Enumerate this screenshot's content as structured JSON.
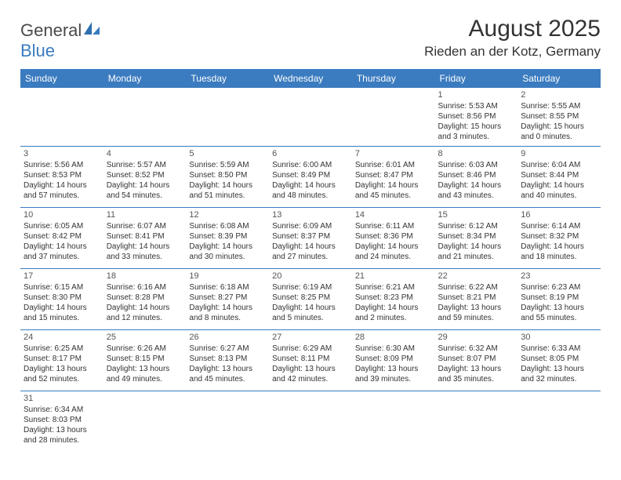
{
  "logo": {
    "text1": "General",
    "text2": "Blue"
  },
  "title": "August 2025",
  "location": "Rieden an der Kotz, Germany",
  "colors": {
    "header_bg": "#3b7bbf",
    "header_text": "#ffffff",
    "border": "#3b7bbf",
    "text": "#333333",
    "logo_gray": "#4a4a4a",
    "logo_blue": "#3b7bbf"
  },
  "weekdays": [
    "Sunday",
    "Monday",
    "Tuesday",
    "Wednesday",
    "Thursday",
    "Friday",
    "Saturday"
  ],
  "weeks": [
    [
      null,
      null,
      null,
      null,
      null,
      {
        "day": "1",
        "sunrise": "Sunrise: 5:53 AM",
        "sunset": "Sunset: 8:56 PM",
        "daylight1": "Daylight: 15 hours",
        "daylight2": "and 3 minutes."
      },
      {
        "day": "2",
        "sunrise": "Sunrise: 5:55 AM",
        "sunset": "Sunset: 8:55 PM",
        "daylight1": "Daylight: 15 hours",
        "daylight2": "and 0 minutes."
      }
    ],
    [
      {
        "day": "3",
        "sunrise": "Sunrise: 5:56 AM",
        "sunset": "Sunset: 8:53 PM",
        "daylight1": "Daylight: 14 hours",
        "daylight2": "and 57 minutes."
      },
      {
        "day": "4",
        "sunrise": "Sunrise: 5:57 AM",
        "sunset": "Sunset: 8:52 PM",
        "daylight1": "Daylight: 14 hours",
        "daylight2": "and 54 minutes."
      },
      {
        "day": "5",
        "sunrise": "Sunrise: 5:59 AM",
        "sunset": "Sunset: 8:50 PM",
        "daylight1": "Daylight: 14 hours",
        "daylight2": "and 51 minutes."
      },
      {
        "day": "6",
        "sunrise": "Sunrise: 6:00 AM",
        "sunset": "Sunset: 8:49 PM",
        "daylight1": "Daylight: 14 hours",
        "daylight2": "and 48 minutes."
      },
      {
        "day": "7",
        "sunrise": "Sunrise: 6:01 AM",
        "sunset": "Sunset: 8:47 PM",
        "daylight1": "Daylight: 14 hours",
        "daylight2": "and 45 minutes."
      },
      {
        "day": "8",
        "sunrise": "Sunrise: 6:03 AM",
        "sunset": "Sunset: 8:46 PM",
        "daylight1": "Daylight: 14 hours",
        "daylight2": "and 43 minutes."
      },
      {
        "day": "9",
        "sunrise": "Sunrise: 6:04 AM",
        "sunset": "Sunset: 8:44 PM",
        "daylight1": "Daylight: 14 hours",
        "daylight2": "and 40 minutes."
      }
    ],
    [
      {
        "day": "10",
        "sunrise": "Sunrise: 6:05 AM",
        "sunset": "Sunset: 8:42 PM",
        "daylight1": "Daylight: 14 hours",
        "daylight2": "and 37 minutes."
      },
      {
        "day": "11",
        "sunrise": "Sunrise: 6:07 AM",
        "sunset": "Sunset: 8:41 PM",
        "daylight1": "Daylight: 14 hours",
        "daylight2": "and 33 minutes."
      },
      {
        "day": "12",
        "sunrise": "Sunrise: 6:08 AM",
        "sunset": "Sunset: 8:39 PM",
        "daylight1": "Daylight: 14 hours",
        "daylight2": "and 30 minutes."
      },
      {
        "day": "13",
        "sunrise": "Sunrise: 6:09 AM",
        "sunset": "Sunset: 8:37 PM",
        "daylight1": "Daylight: 14 hours",
        "daylight2": "and 27 minutes."
      },
      {
        "day": "14",
        "sunrise": "Sunrise: 6:11 AM",
        "sunset": "Sunset: 8:36 PM",
        "daylight1": "Daylight: 14 hours",
        "daylight2": "and 24 minutes."
      },
      {
        "day": "15",
        "sunrise": "Sunrise: 6:12 AM",
        "sunset": "Sunset: 8:34 PM",
        "daylight1": "Daylight: 14 hours",
        "daylight2": "and 21 minutes."
      },
      {
        "day": "16",
        "sunrise": "Sunrise: 6:14 AM",
        "sunset": "Sunset: 8:32 PM",
        "daylight1": "Daylight: 14 hours",
        "daylight2": "and 18 minutes."
      }
    ],
    [
      {
        "day": "17",
        "sunrise": "Sunrise: 6:15 AM",
        "sunset": "Sunset: 8:30 PM",
        "daylight1": "Daylight: 14 hours",
        "daylight2": "and 15 minutes."
      },
      {
        "day": "18",
        "sunrise": "Sunrise: 6:16 AM",
        "sunset": "Sunset: 8:28 PM",
        "daylight1": "Daylight: 14 hours",
        "daylight2": "and 12 minutes."
      },
      {
        "day": "19",
        "sunrise": "Sunrise: 6:18 AM",
        "sunset": "Sunset: 8:27 PM",
        "daylight1": "Daylight: 14 hours",
        "daylight2": "and 8 minutes."
      },
      {
        "day": "20",
        "sunrise": "Sunrise: 6:19 AM",
        "sunset": "Sunset: 8:25 PM",
        "daylight1": "Daylight: 14 hours",
        "daylight2": "and 5 minutes."
      },
      {
        "day": "21",
        "sunrise": "Sunrise: 6:21 AM",
        "sunset": "Sunset: 8:23 PM",
        "daylight1": "Daylight: 14 hours",
        "daylight2": "and 2 minutes."
      },
      {
        "day": "22",
        "sunrise": "Sunrise: 6:22 AM",
        "sunset": "Sunset: 8:21 PM",
        "daylight1": "Daylight: 13 hours",
        "daylight2": "and 59 minutes."
      },
      {
        "day": "23",
        "sunrise": "Sunrise: 6:23 AM",
        "sunset": "Sunset: 8:19 PM",
        "daylight1": "Daylight: 13 hours",
        "daylight2": "and 55 minutes."
      }
    ],
    [
      {
        "day": "24",
        "sunrise": "Sunrise: 6:25 AM",
        "sunset": "Sunset: 8:17 PM",
        "daylight1": "Daylight: 13 hours",
        "daylight2": "and 52 minutes."
      },
      {
        "day": "25",
        "sunrise": "Sunrise: 6:26 AM",
        "sunset": "Sunset: 8:15 PM",
        "daylight1": "Daylight: 13 hours",
        "daylight2": "and 49 minutes."
      },
      {
        "day": "26",
        "sunrise": "Sunrise: 6:27 AM",
        "sunset": "Sunset: 8:13 PM",
        "daylight1": "Daylight: 13 hours",
        "daylight2": "and 45 minutes."
      },
      {
        "day": "27",
        "sunrise": "Sunrise: 6:29 AM",
        "sunset": "Sunset: 8:11 PM",
        "daylight1": "Daylight: 13 hours",
        "daylight2": "and 42 minutes."
      },
      {
        "day": "28",
        "sunrise": "Sunrise: 6:30 AM",
        "sunset": "Sunset: 8:09 PM",
        "daylight1": "Daylight: 13 hours",
        "daylight2": "and 39 minutes."
      },
      {
        "day": "29",
        "sunrise": "Sunrise: 6:32 AM",
        "sunset": "Sunset: 8:07 PM",
        "daylight1": "Daylight: 13 hours",
        "daylight2": "and 35 minutes."
      },
      {
        "day": "30",
        "sunrise": "Sunrise: 6:33 AM",
        "sunset": "Sunset: 8:05 PM",
        "daylight1": "Daylight: 13 hours",
        "daylight2": "and 32 minutes."
      }
    ],
    [
      {
        "day": "31",
        "sunrise": "Sunrise: 6:34 AM",
        "sunset": "Sunset: 8:03 PM",
        "daylight1": "Daylight: 13 hours",
        "daylight2": "and 28 minutes."
      },
      null,
      null,
      null,
      null,
      null,
      null
    ]
  ]
}
